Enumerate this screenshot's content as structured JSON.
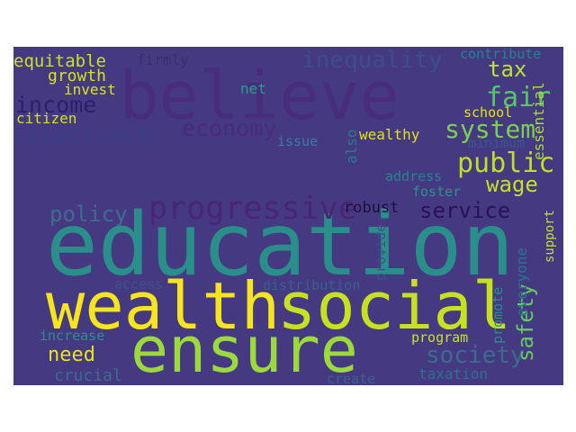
{
  "background": "#453a82",
  "words": [
    {
      "key": "believe",
      "text": "believe",
      "color": "#472d7b"
    },
    {
      "key": "education",
      "text": "education",
      "color": "#2a8f8a"
    },
    {
      "key": "wealth",
      "text": "wealth",
      "color": "#f4e51e"
    },
    {
      "key": "social",
      "text": "social",
      "color": "#c7e020"
    },
    {
      "key": "ensure",
      "text": "ensure",
      "color": "#9bd93c"
    },
    {
      "key": "progressive",
      "text": "progressive",
      "color": "#482576"
    },
    {
      "key": "public",
      "text": "public",
      "color": "#bddf26"
    },
    {
      "key": "system",
      "text": "system",
      "color": "#7ad151"
    },
    {
      "key": "fair",
      "text": "fair",
      "color": "#56c667"
    },
    {
      "key": "income",
      "text": "income",
      "color": "#2e1f6d"
    },
    {
      "key": "economy",
      "text": "economy",
      "color": "#4a2a7a"
    },
    {
      "key": "opportunity",
      "text": "opportunity",
      "color": "#3a3f85"
    },
    {
      "key": "inequality",
      "text": "inequality",
      "color": "#3c4e8a"
    },
    {
      "key": "tax",
      "text": "tax",
      "color": "#bde52f"
    },
    {
      "key": "wage",
      "text": "wage",
      "color": "#c8df25"
    },
    {
      "key": "service",
      "text": "service",
      "color": "#2a0f5c"
    },
    {
      "key": "policy",
      "text": "policy",
      "color": "#3b6e8e"
    },
    {
      "key": "society",
      "text": "society",
      "color": "#3d6a8f"
    },
    {
      "key": "safety",
      "text": "safety",
      "color": "#66c964"
    },
    {
      "key": "need",
      "text": "need",
      "color": "#e6e419"
    },
    {
      "key": "equitable",
      "text": "equitable",
      "color": "#c9e023"
    },
    {
      "key": "growth",
      "text": "growth",
      "color": "#d2e21b"
    },
    {
      "key": "invest",
      "text": "invest",
      "color": "#d6e41a"
    },
    {
      "key": "citizen",
      "text": "citizen",
      "color": "#d0e11c"
    },
    {
      "key": "firmly",
      "text": "firmly",
      "color": "#35316e"
    },
    {
      "key": "net",
      "text": "net",
      "color": "#1fa187"
    },
    {
      "key": "contribute",
      "text": "contribute",
      "color": "#24848c"
    },
    {
      "key": "school",
      "text": "school",
      "color": "#e2e418"
    },
    {
      "key": "wealthy",
      "text": "wealthy",
      "color": "#e0e218"
    },
    {
      "key": "issue",
      "text": "issue",
      "color": "#3f7aa0"
    },
    {
      "key": "also",
      "text": "also",
      "color": "#2a788e"
    },
    {
      "key": "minimum",
      "text": "minimum",
      "color": "#38588c"
    },
    {
      "key": "essential",
      "text": "essential",
      "color": "#a8db34"
    },
    {
      "key": "address",
      "text": "address",
      "color": "#25848e"
    },
    {
      "key": "foster",
      "text": "foster",
      "color": "#2c928a"
    },
    {
      "key": "robust",
      "text": "robust",
      "color": "#1f0e3d"
    },
    {
      "key": "support",
      "text": "support",
      "color": "#c4e02a"
    },
    {
      "key": "provide",
      "text": "provide",
      "color": "#3a548c"
    },
    {
      "key": "everyone",
      "text": "everyone",
      "color": "#2c728e"
    },
    {
      "key": "promote",
      "text": "promote",
      "color": "#2c8c8c"
    },
    {
      "key": "access",
      "text": "access",
      "color": "#3b528b"
    },
    {
      "key": "distribution",
      "text": "distribution",
      "color": "#35608d"
    },
    {
      "key": "increase",
      "text": "increase",
      "color": "#2f8e8c"
    },
    {
      "key": "program",
      "text": "program",
      "color": "#c6e12a"
    },
    {
      "key": "crucial",
      "text": "crucial",
      "color": "#3b6c8e"
    },
    {
      "key": "create",
      "text": "create",
      "color": "#3b618d"
    },
    {
      "key": "taxation",
      "text": "taxation",
      "color": "#2e6e8e"
    }
  ]
}
